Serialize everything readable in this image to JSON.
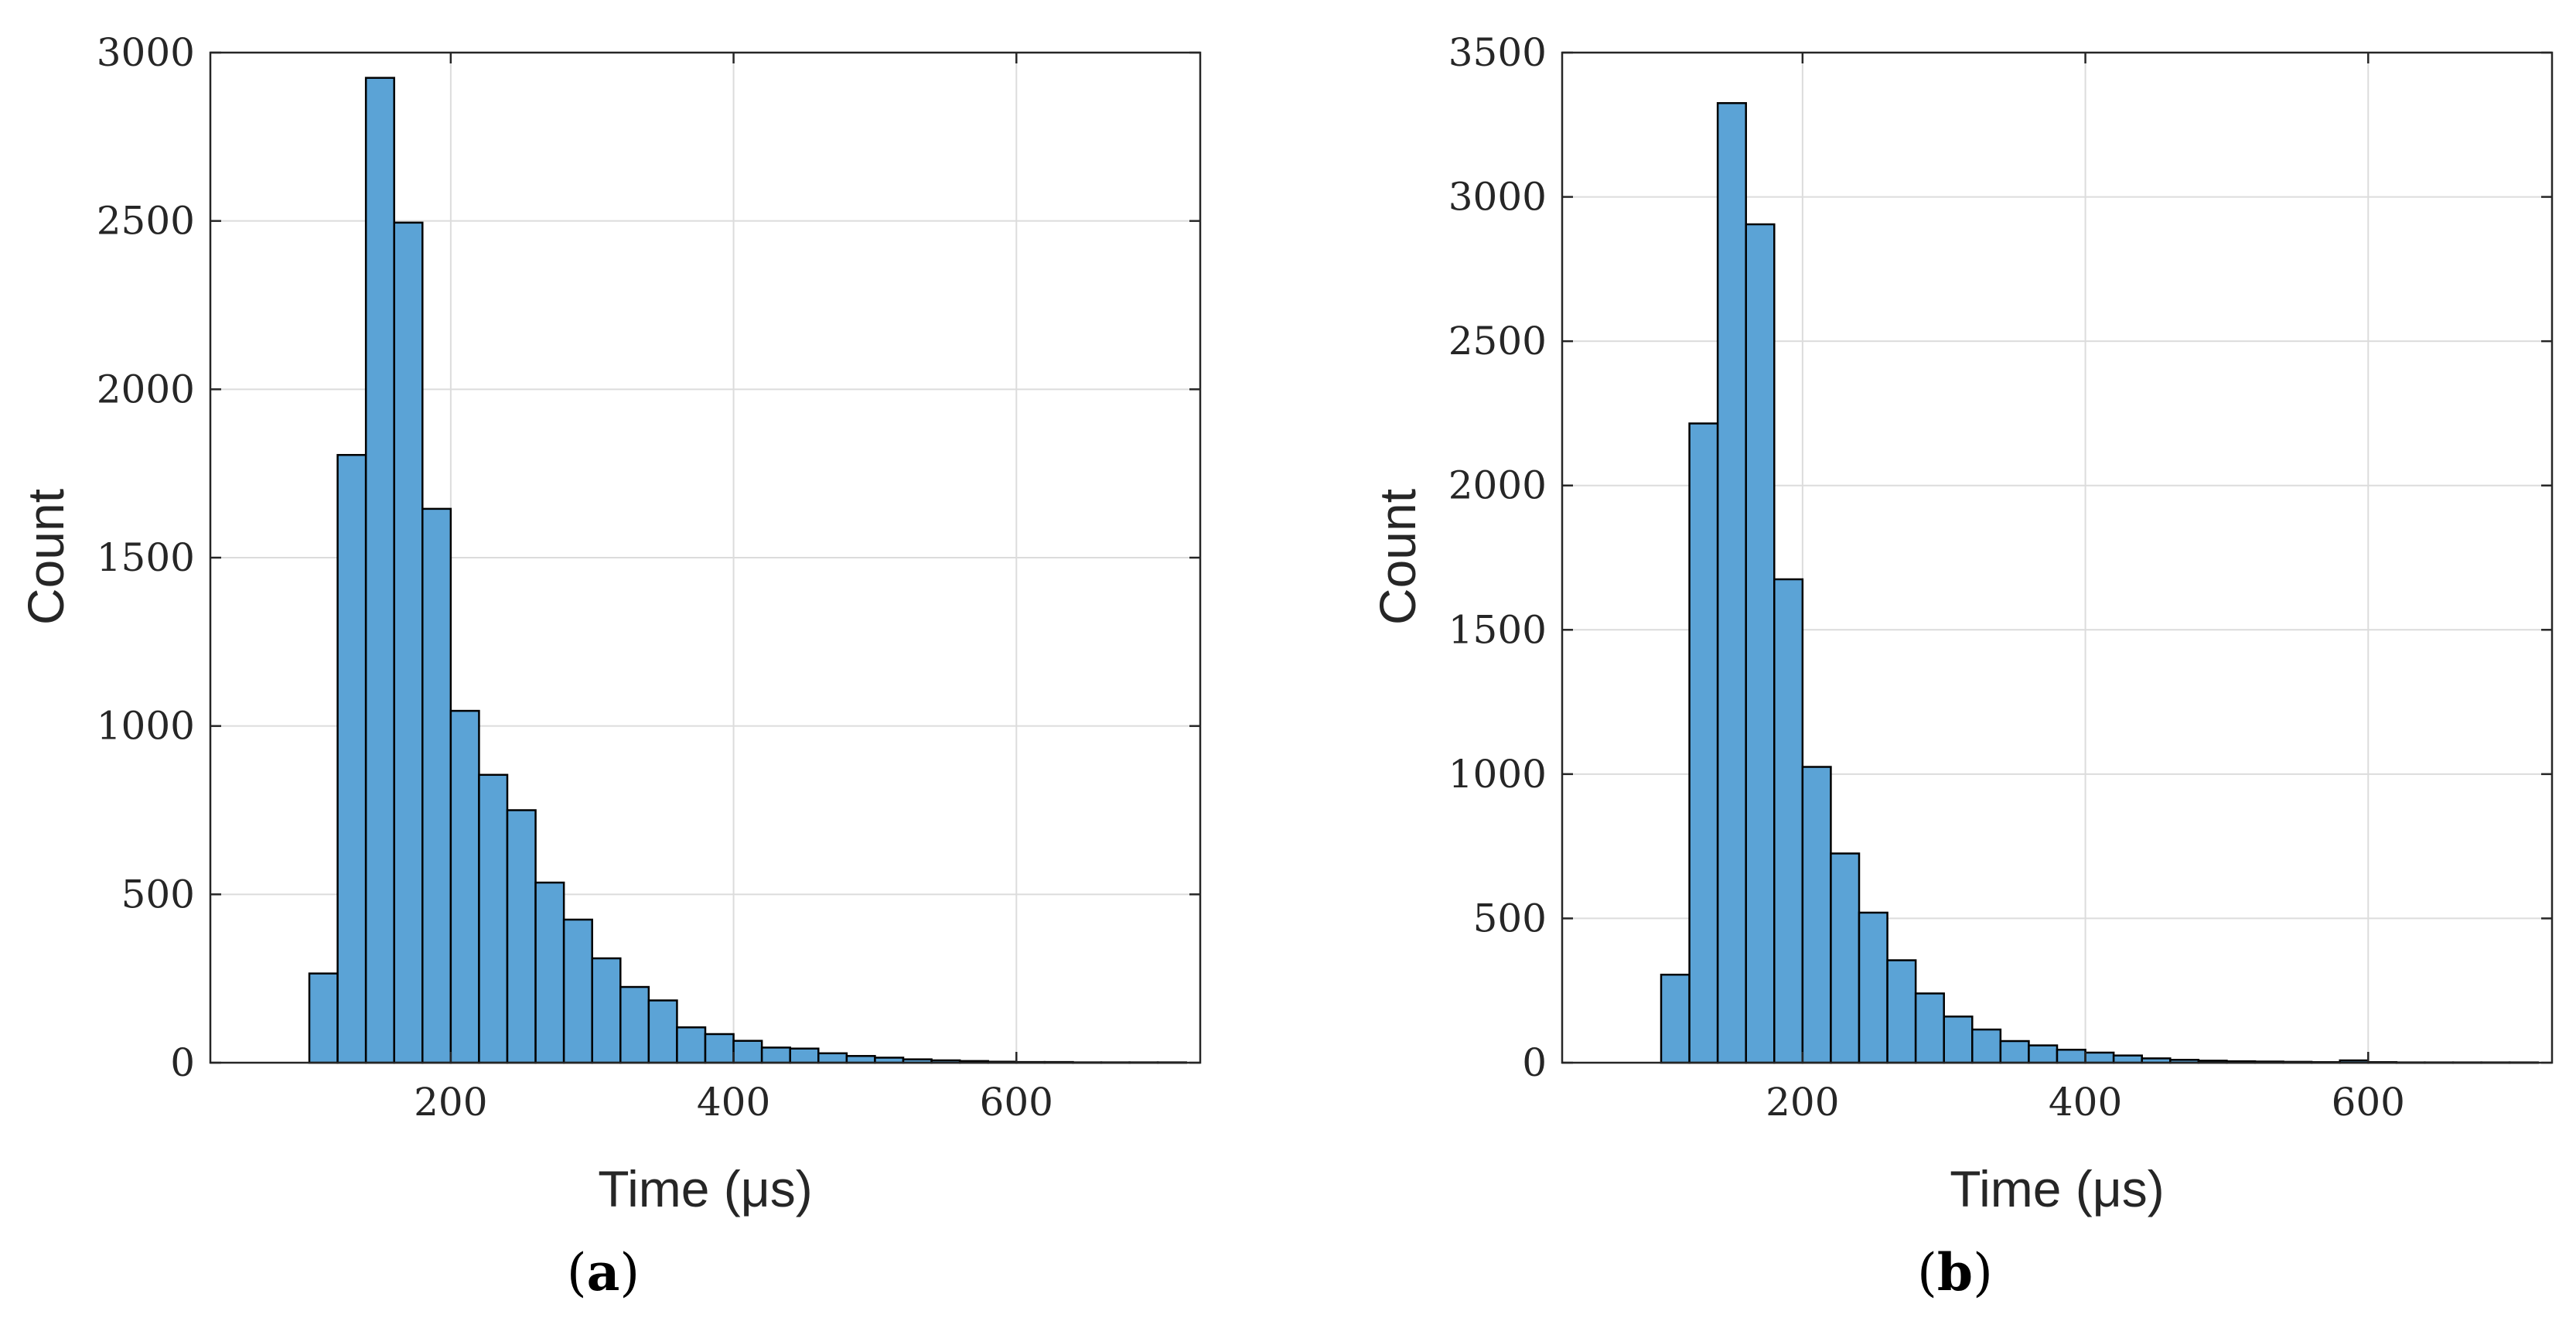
{
  "colors": {
    "bar_fill": "#5BA3D6",
    "bar_edge": "#000000",
    "grid": "#DCDCDC",
    "axis": "#262626"
  },
  "chart_data": [
    {
      "type": "bar",
      "panel_label": "a",
      "xlabel": "Time (μs)",
      "ylabel": "Count",
      "xlim": [
        30,
        730
      ],
      "ylim": [
        0,
        3000
      ],
      "xticks": [
        200,
        400,
        600
      ],
      "yticks": [
        0,
        500,
        1000,
        1500,
        2000,
        2500,
        3000
      ],
      "grid": true,
      "bin_edges": [
        100,
        120,
        140,
        160,
        180,
        200,
        220,
        240,
        260,
        280,
        300,
        320,
        340,
        360,
        380,
        400,
        420,
        440,
        460,
        480,
        500,
        520,
        540,
        560,
        580,
        600,
        620,
        640,
        660,
        680,
        700,
        720
      ],
      "values": [
        265,
        1805,
        2925,
        2495,
        1645,
        1045,
        855,
        750,
        535,
        425,
        310,
        225,
        185,
        105,
        85,
        65,
        45,
        42,
        28,
        20,
        15,
        10,
        7,
        5,
        3,
        2,
        2,
        1,
        1,
        1,
        1
      ]
    },
    {
      "type": "bar",
      "panel_label": "b",
      "xlabel": "Time (μs)",
      "ylabel": "Count",
      "xlim": [
        30,
        730
      ],
      "ylim": [
        0,
        3500
      ],
      "xticks": [
        200,
        400,
        600
      ],
      "yticks": [
        0,
        500,
        1000,
        1500,
        2000,
        2500,
        3000,
        3500
      ],
      "grid": true,
      "bin_edges": [
        100,
        120,
        140,
        160,
        180,
        200,
        220,
        240,
        260,
        280,
        300,
        320,
        340,
        360,
        380,
        400,
        420,
        440,
        460,
        480,
        500,
        520,
        540,
        560,
        580,
        600,
        620,
        640,
        660,
        680,
        700,
        720
      ],
      "values": [
        305,
        2215,
        3325,
        2905,
        1675,
        1025,
        725,
        520,
        355,
        240,
        160,
        115,
        75,
        60,
        45,
        35,
        25,
        15,
        10,
        7,
        5,
        4,
        3,
        2,
        8,
        2,
        1,
        1,
        1,
        1,
        1
      ]
    }
  ]
}
